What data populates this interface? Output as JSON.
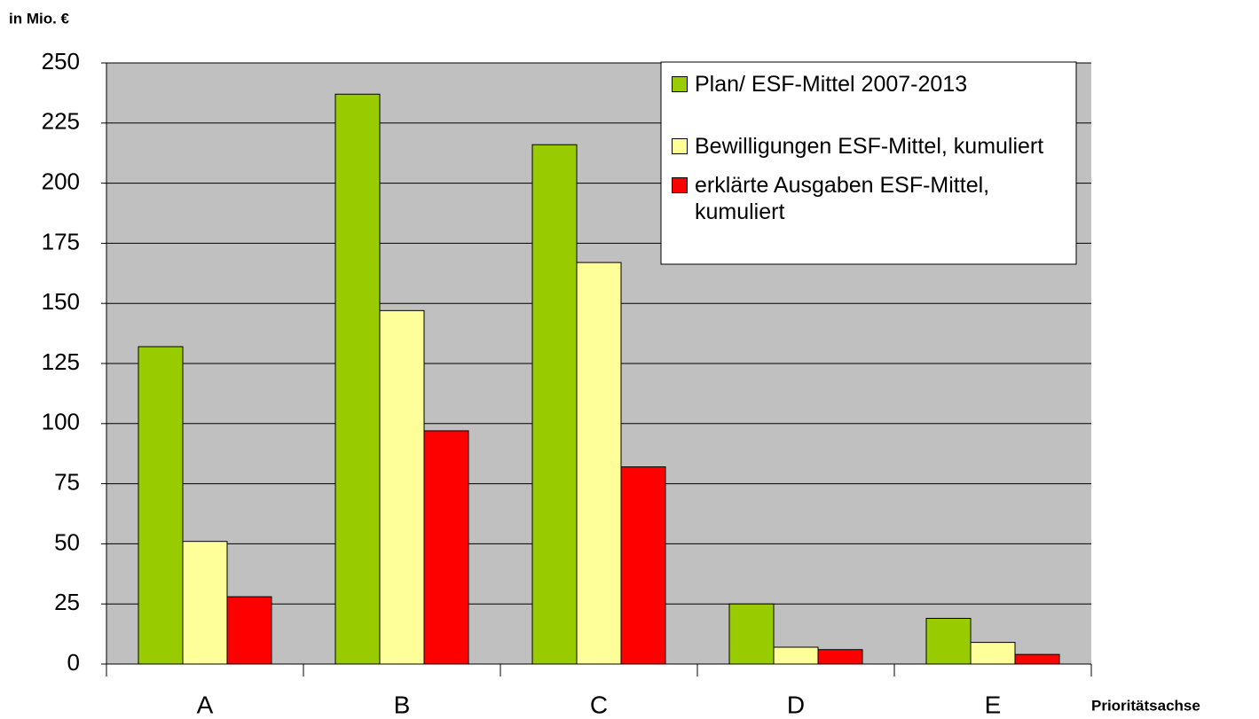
{
  "chart_data": {
    "type": "bar",
    "y_label": "in Mio. €",
    "x_label": "Prioritätsachse",
    "categories": [
      "A",
      "B",
      "C",
      "D",
      "E"
    ],
    "series": [
      {
        "name": "Plan/ ESF-Mittel 2007-2013",
        "color": "#99cc00",
        "values": [
          132,
          237,
          216,
          25,
          19
        ]
      },
      {
        "name": "Bewilligungen ESF-Mittel, kumuliert",
        "color": "#ffff99",
        "values": [
          51,
          147,
          167,
          7,
          9
        ]
      },
      {
        "name": "erklärte Ausgaben ESF-Mittel, kumuliert",
        "color": "#ff0000",
        "values": [
          28,
          97,
          82,
          6,
          4
        ]
      }
    ],
    "ylim": [
      0,
      250
    ],
    "yticks": [
      0,
      25,
      50,
      75,
      100,
      125,
      150,
      175,
      200,
      225,
      250
    ],
    "grid": true,
    "plot_background": "#c0c0c0",
    "legend": "top-right"
  }
}
